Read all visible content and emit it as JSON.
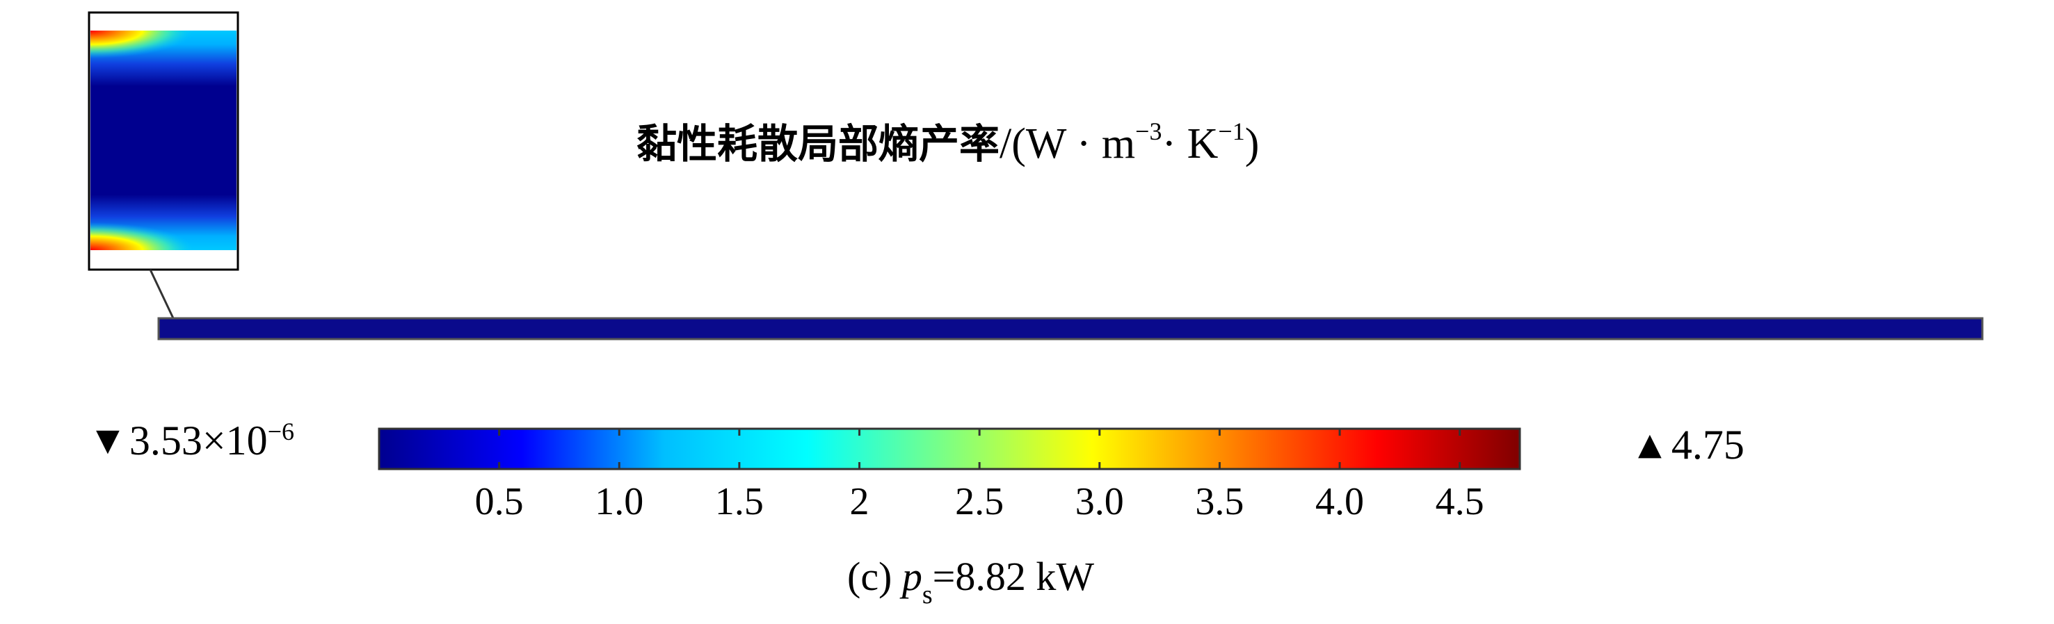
{
  "title": {
    "zh": "黏性耗散局部熵产率",
    "unit_prefix": "/(W · m",
    "exp1": "−3",
    "unit_mid": "· K",
    "exp2": "−1",
    "unit_suffix": ")"
  },
  "colorbar": {
    "min_marker": "▼",
    "min_mantissa": "3.53×10",
    "min_exp": "−6",
    "max_marker": "▲",
    "max_value": "4.75",
    "ticks": [
      {
        "label": "0.5",
        "value": 0.5
      },
      {
        "label": "1.0",
        "value": 1.0
      },
      {
        "label": "1.5",
        "value": 1.5
      },
      {
        "label": "2",
        "value": 2.0
      },
      {
        "label": "2.5",
        "value": 2.5
      },
      {
        "label": "3.0",
        "value": 3.0
      },
      {
        "label": "3.5",
        "value": 3.5
      },
      {
        "label": "4.0",
        "value": 4.0
      },
      {
        "label": "4.5",
        "value": 4.5
      }
    ],
    "range": [
      3.53e-06,
      4.75
    ],
    "colormap": [
      "#00008f",
      "#0000ff",
      "#00bfff",
      "#00ffff",
      "#80ff80",
      "#ffff00",
      "#ff8000",
      "#ff0000",
      "#800000"
    ]
  },
  "caption": {
    "prefix": "(c) ",
    "var": "p",
    "sub": "s",
    "value": "=8.82 kW"
  }
}
